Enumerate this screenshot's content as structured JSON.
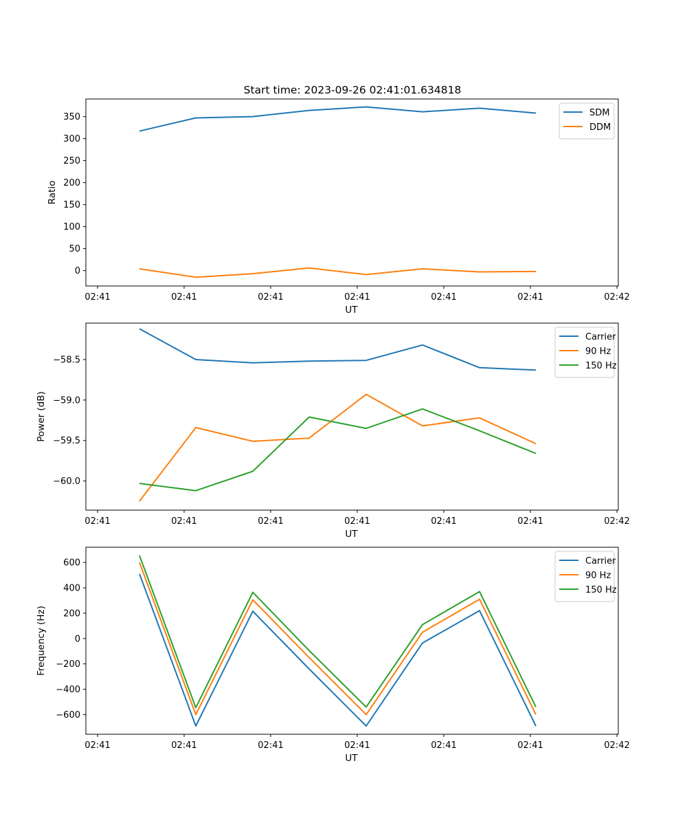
{
  "figure": {
    "title": "Start time: 2023-09-26 02:41:01.634818"
  },
  "chart_data": [
    {
      "type": "line",
      "title": "Start time: 2023-09-26 02:41:01.634818",
      "xlabel": "UT",
      "ylabel": "Ratio",
      "x_tick_labels": [
        "02:41",
        "02:41",
        "02:41",
        "02:41",
        "02:41",
        "02:41",
        "02:42"
      ],
      "y_ticks": [
        0,
        50,
        100,
        150,
        200,
        250,
        300,
        350
      ],
      "ylim": [
        -35,
        390
      ],
      "legend_position": "top-right",
      "grid": false,
      "x": [
        1,
        2,
        3,
        4,
        5,
        6,
        7,
        8
      ],
      "series": [
        {
          "name": "SDM",
          "color": "#1f77b4",
          "values": [
            317,
            347,
            350,
            364,
            372,
            361,
            369,
            358
          ]
        },
        {
          "name": "DDM",
          "color": "#ff7f0e",
          "values": [
            4,
            -15,
            -7,
            6,
            -9,
            4,
            -3,
            -2
          ]
        }
      ]
    },
    {
      "type": "line",
      "xlabel": "UT",
      "ylabel": "Power (dB)",
      "x_tick_labels": [
        "02:41",
        "02:41",
        "02:41",
        "02:41",
        "02:41",
        "02:41",
        "02:42"
      ],
      "y_ticks": [
        -60.0,
        -59.5,
        -59.0,
        -58.5
      ],
      "y_tick_labels": [
        "−60.0",
        "−59.5",
        "−59.0",
        "−58.5"
      ],
      "ylim": [
        -60.36,
        -58.05
      ],
      "legend_position": "top-right",
      "grid": false,
      "x": [
        1,
        2,
        3,
        4,
        5,
        6,
        7,
        8
      ],
      "series": [
        {
          "name": "Carrier",
          "color": "#1f77b4",
          "values": [
            -58.12,
            -58.5,
            -58.54,
            -58.52,
            -58.51,
            -58.32,
            -58.6,
            -58.63
          ]
        },
        {
          "name": "90 Hz",
          "color": "#ff7f0e",
          "values": [
            -60.25,
            -59.34,
            -59.51,
            -59.47,
            -58.93,
            -59.32,
            -59.22,
            -59.54
          ]
        },
        {
          "name": "150 Hz",
          "color": "#2ca02c",
          "values": [
            -60.03,
            -60.12,
            -59.88,
            -59.21,
            -59.35,
            -59.11,
            -59.38,
            -59.66
          ]
        }
      ]
    },
    {
      "type": "line",
      "xlabel": "UT",
      "ylabel": "Frequency (Hz)",
      "x_tick_labels": [
        "02:41",
        "02:41",
        "02:41",
        "02:41",
        "02:41",
        "02:41",
        "02:42"
      ],
      "y_ticks": [
        -600,
        -400,
        -200,
        0,
        200,
        400,
        600
      ],
      "y_tick_labels": [
        "−600",
        "−400",
        "−200",
        "0",
        "200",
        "400",
        "600"
      ],
      "ylim": [
        -755,
        720
      ],
      "legend_position": "top-right",
      "grid": false,
      "x": [
        1,
        2,
        3,
        4,
        5,
        6,
        7,
        8
      ],
      "series": [
        {
          "name": "Carrier",
          "color": "#1f77b4",
          "values": [
            510,
            -690,
            215,
            -240,
            -690,
            -35,
            220,
            -690
          ]
        },
        {
          "name": "90 Hz",
          "color": "#ff7f0e",
          "values": [
            600,
            -600,
            305,
            -150,
            -600,
            50,
            310,
            -600
          ]
        },
        {
          "name": "150 Hz",
          "color": "#2ca02c",
          "values": [
            655,
            -545,
            365,
            -95,
            -540,
            110,
            370,
            -540
          ]
        }
      ]
    }
  ]
}
